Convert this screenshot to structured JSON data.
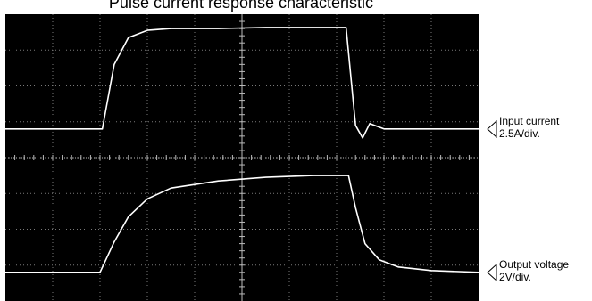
{
  "chart_data": {
    "type": "line",
    "title": "Pulse current response characteristic",
    "xlabel": "",
    "ylabel": "",
    "grid": true,
    "divisions": {
      "x": 10,
      "y": 8
    },
    "background": "#000000",
    "grid_color": "#7a7a7a",
    "trace_color": "#ffffff",
    "series": [
      {
        "name": "Input current",
        "scale": "2.5A/div.",
        "marker_div": 4.8,
        "x": [
          0,
          2.05,
          2.3,
          2.6,
          3.0,
          3.5,
          4.5,
          5.5,
          6.3,
          7.2,
          7.4,
          7.55,
          7.7,
          8.0,
          10
        ],
        "y": [
          4.8,
          4.8,
          6.6,
          7.35,
          7.55,
          7.6,
          7.6,
          7.63,
          7.63,
          7.63,
          4.9,
          4.55,
          4.95,
          4.8,
          4.8
        ]
      },
      {
        "name": "Output voltage",
        "scale": "2V/div.",
        "marker_div": 0.8,
        "x": [
          0,
          2.0,
          2.3,
          2.6,
          3.0,
          3.5,
          4.5,
          5.5,
          6.5,
          7.25,
          7.4,
          7.6,
          7.9,
          8.3,
          9.0,
          10
        ],
        "y": [
          0.8,
          0.8,
          1.65,
          2.35,
          2.85,
          3.15,
          3.35,
          3.45,
          3.5,
          3.5,
          2.6,
          1.6,
          1.15,
          0.95,
          0.85,
          0.8
        ]
      }
    ]
  },
  "markers": [
    {
      "label": "Input current",
      "scale": "2.5A/div."
    },
    {
      "label": "Output voltage",
      "scale": "2V/div."
    }
  ]
}
